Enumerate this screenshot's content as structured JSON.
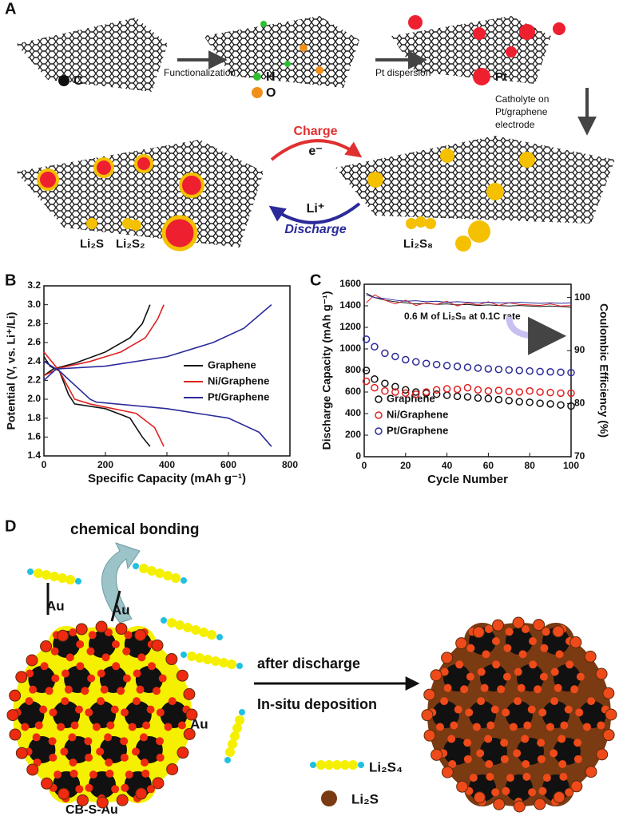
{
  "panel_a": {
    "label": "A",
    "carbon": "C",
    "step1": "Functionalization",
    "hydrogen": "H",
    "oxygen": "O",
    "step2": "Pt dispersion",
    "platinum": "Pt",
    "step3": [
      "Catholyte on",
      "Pt/graphene",
      "electrode"
    ],
    "charge": "Charge",
    "electron": "e⁻",
    "lithium": "Li⁺",
    "discharge": "Discharge",
    "product1": "Li₂S",
    "product2": "Li₂S₂",
    "reactant": "Li₂S₈"
  },
  "panel_d": {
    "label": "D",
    "bonding": "chemical bonding",
    "au": [
      "Au",
      "Au",
      "Au"
    ],
    "arrow_top": "after discharge",
    "arrow_bottom": "In-situ deposition",
    "legend_chain": "Li₂S₄",
    "legend_ball": "Li₂S",
    "cluster": "CB-S-Au"
  },
  "chart_data": [
    {
      "panel": "B",
      "type": "line",
      "x_label": "Specific Capacity (mAh g⁻¹)",
      "y_label": "Potential (V, vs. Li⁺/Li)",
      "xlim": [
        0,
        800
      ],
      "xticks": [
        0,
        200,
        400,
        600,
        800
      ],
      "ylim": [
        1.4,
        3.2
      ],
      "yticks": [
        1.4,
        1.6,
        1.8,
        {
          "value": 2,
          "label": "2.0"
        },
        2.2,
        2.4,
        2.6,
        2.8,
        {
          "value": 3,
          "label": "3.0"
        },
        3.2
      ],
      "legend": "right",
      "series": [
        {
          "name": "Graphene",
          "color": "#111111",
          "curves": [
            {
              "x": [
                0,
                20,
                50,
                80,
                100,
                200,
                280,
                320,
                345
              ],
              "values": [
                2.45,
                2.35,
                2.3,
                2.05,
                1.95,
                1.9,
                1.8,
                1.6,
                1.5
              ]
            },
            {
              "x": [
                0,
                30,
                100,
                200,
                280,
                320,
                345
              ],
              "values": [
                2.25,
                2.32,
                2.38,
                2.5,
                2.65,
                2.8,
                3.0
              ]
            }
          ]
        },
        {
          "name": "Ni/Graphene",
          "color": "#e02020",
          "curves": [
            {
              "x": [
                0,
                50,
                100,
                150,
                300,
                360,
                390
              ],
              "values": [
                2.5,
                2.3,
                2.0,
                1.95,
                1.85,
                1.7,
                1.5
              ]
            },
            {
              "x": [
                0,
                50,
                150,
                250,
                330,
                370,
                390
              ],
              "values": [
                2.25,
                2.33,
                2.4,
                2.5,
                2.65,
                2.85,
                3.0
              ]
            }
          ]
        },
        {
          "name": "Pt/Graphene",
          "color": "#2a2a9a",
          "curves": [
            {
              "x": [
                0,
                50,
                150,
                170,
                400,
                600,
                700,
                740
              ],
              "values": [
                2.4,
                2.3,
                2.0,
                1.97,
                1.9,
                1.8,
                1.65,
                1.5
              ]
            },
            {
              "x": [
                0,
                40,
                200,
                400,
                550,
                650,
                740
              ],
              "values": [
                2.2,
                2.32,
                2.35,
                2.45,
                2.6,
                2.75,
                3.0
              ]
            }
          ]
        }
      ]
    },
    {
      "panel": "C",
      "type": "scatter",
      "x_label": "Cycle Number",
      "y_label": "Discharge Capacity (mAh g⁻¹)",
      "y2_label": "Coulombic Efficiency (%)",
      "annotation": "0.6 M of Li₂S₈ at 0.1C rate",
      "xlim": [
        0,
        100
      ],
      "xticks": [
        0,
        20,
        40,
        60,
        80,
        100
      ],
      "ylim": [
        0,
        1600
      ],
      "yticks": [
        0,
        200,
        400,
        600,
        800,
        1000,
        1200,
        1400,
        1600
      ],
      "y2lim": [
        70,
        102.5
      ],
      "y2ticks": [
        70,
        80,
        90,
        100
      ],
      "legend": "lower left",
      "x": [
        1,
        5,
        10,
        15,
        20,
        25,
        30,
        35,
        40,
        45,
        50,
        55,
        60,
        65,
        70,
        75,
        80,
        85,
        90,
        95,
        100
      ],
      "series": [
        {
          "name": "Graphene",
          "color": "#111111",
          "values": [
            800,
            720,
            680,
            650,
            620,
            600,
            590,
            580,
            570,
            560,
            555,
            545,
            540,
            530,
            520,
            510,
            505,
            495,
            490,
            480,
            470
          ]
        },
        {
          "name": "Ni/Graphene",
          "color": "#e02020",
          "values": [
            700,
            640,
            610,
            600,
            590,
            580,
            600,
            620,
            630,
            625,
            640,
            620,
            610,
            615,
            605,
            600,
            610,
            600,
            595,
            590,
            590
          ]
        },
        {
          "name": "Pt/Graphene",
          "color": "#2a2a9a",
          "values": [
            1090,
            1020,
            960,
            930,
            900,
            880,
            865,
            855,
            845,
            838,
            830,
            822,
            815,
            810,
            805,
            800,
            795,
            790,
            787,
            783,
            780
          ]
        },
        {
          "color": "#111111",
          "axis": "y2",
          "values": [
            100.8,
            100,
            99.5,
            99.2,
            99,
            98.8,
            98.9,
            98.7,
            98.8,
            98.6,
            98.7,
            98.5,
            98.6,
            98.5,
            98.4,
            98.5,
            98.4,
            98.3,
            98.4,
            98.3,
            98.2
          ]
        },
        {
          "color": "#e02020",
          "axis": "y2",
          "values": [
            99,
            100.5,
            99.5,
            98.8,
            99.5,
            98.5,
            99,
            98.7,
            99.3,
            98.4,
            99,
            98.6,
            99.2,
            98.5,
            99,
            98.7,
            98.6,
            98.5,
            98.8,
            98.4,
            98.5
          ]
        },
        {
          "color": "#2a2a9a",
          "axis": "y2",
          "values": [
            100.5,
            100,
            99.8,
            99.5,
            99.3,
            99.4,
            99.2,
            99.3,
            99.1,
            99.2,
            99.1,
            99,
            99.1,
            99,
            99,
            99.1,
            99,
            98.9,
            99,
            98.9,
            99
          ]
        }
      ]
    }
  ]
}
